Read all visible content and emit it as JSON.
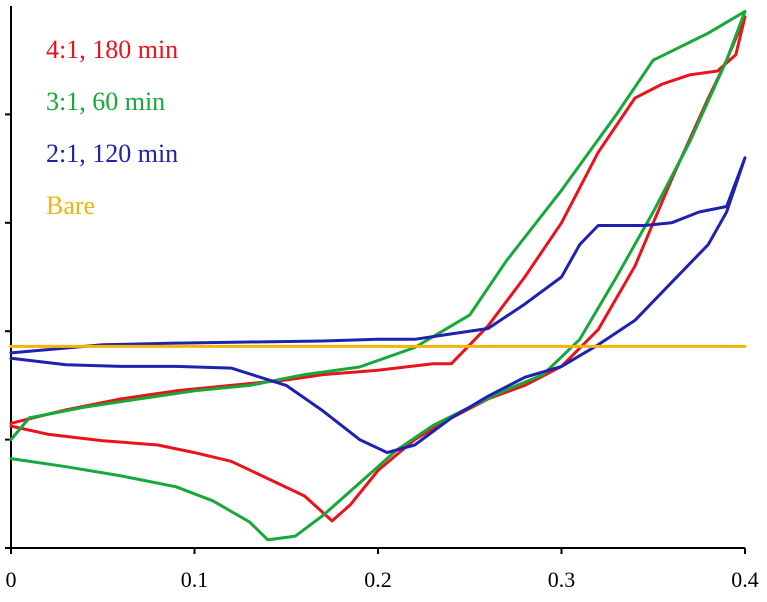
{
  "chart_data": {
    "type": "line",
    "title": "",
    "xlabel": "",
    "ylabel": "",
    "xlim": [
      0,
      0.4
    ],
    "ylim": [
      0,
      1
    ],
    "x_ticks": [
      "0",
      "0.1",
      "0.2",
      "0.3",
      "0.4"
    ],
    "y_ticks": [
      0.0,
      0.2,
      0.4,
      0.6,
      0.8
    ],
    "y_tick_labels_shown": false,
    "grid": false,
    "legend_position": "top-left",
    "series": [
      {
        "name": "4:1, 180 min",
        "color": "#e8141a",
        "points": [
          [
            0.0,
            0.225
          ],
          [
            0.02,
            0.21
          ],
          [
            0.05,
            0.198
          ],
          [
            0.08,
            0.19
          ],
          [
            0.1,
            0.176
          ],
          [
            0.12,
            0.16
          ],
          [
            0.14,
            0.128
          ],
          [
            0.16,
            0.096
          ],
          [
            0.175,
            0.05
          ],
          [
            0.185,
            0.08
          ],
          [
            0.2,
            0.143
          ],
          [
            0.22,
            0.2
          ],
          [
            0.24,
            0.24
          ],
          [
            0.26,
            0.275
          ],
          [
            0.28,
            0.3
          ],
          [
            0.3,
            0.335
          ],
          [
            0.32,
            0.403
          ],
          [
            0.34,
            0.52
          ],
          [
            0.36,
            0.68
          ],
          [
            0.38,
            0.83
          ],
          [
            0.39,
            0.9
          ],
          [
            0.4,
            0.98
          ],
          [
            0.395,
            0.91
          ],
          [
            0.385,
            0.88
          ],
          [
            0.37,
            0.873
          ],
          [
            0.355,
            0.856
          ],
          [
            0.34,
            0.83
          ],
          [
            0.32,
            0.73
          ],
          [
            0.3,
            0.6
          ],
          [
            0.28,
            0.5
          ],
          [
            0.26,
            0.41
          ],
          [
            0.24,
            0.34
          ],
          [
            0.23,
            0.34
          ],
          [
            0.2,
            0.328
          ],
          [
            0.17,
            0.32
          ],
          [
            0.15,
            0.31
          ],
          [
            0.12,
            0.3
          ],
          [
            0.09,
            0.29
          ],
          [
            0.06,
            0.275
          ],
          [
            0.03,
            0.255
          ],
          [
            0.0,
            0.23
          ]
        ]
      },
      {
        "name": "3:1, 60 min",
        "color": "#17a83a",
        "points": [
          [
            0.0,
            0.165
          ],
          [
            0.03,
            0.15
          ],
          [
            0.06,
            0.133
          ],
          [
            0.09,
            0.113
          ],
          [
            0.11,
            0.087
          ],
          [
            0.13,
            0.048
          ],
          [
            0.14,
            0.015
          ],
          [
            0.155,
            0.022
          ],
          [
            0.17,
            0.06
          ],
          [
            0.19,
            0.12
          ],
          [
            0.21,
            0.18
          ],
          [
            0.23,
            0.226
          ],
          [
            0.25,
            0.26
          ],
          [
            0.27,
            0.292
          ],
          [
            0.29,
            0.32
          ],
          [
            0.31,
            0.385
          ],
          [
            0.33,
            0.5
          ],
          [
            0.35,
            0.62
          ],
          [
            0.37,
            0.75
          ],
          [
            0.39,
            0.9
          ],
          [
            0.4,
            0.99
          ],
          [
            0.38,
            0.95
          ],
          [
            0.35,
            0.9
          ],
          [
            0.33,
            0.8
          ],
          [
            0.3,
            0.66
          ],
          [
            0.27,
            0.53
          ],
          [
            0.25,
            0.43
          ],
          [
            0.22,
            0.37
          ],
          [
            0.19,
            0.334
          ],
          [
            0.16,
            0.32
          ],
          [
            0.13,
            0.3
          ],
          [
            0.1,
            0.29
          ],
          [
            0.07,
            0.275
          ],
          [
            0.04,
            0.26
          ],
          [
            0.01,
            0.24
          ],
          [
            0.0,
            0.2
          ]
        ]
      },
      {
        "name": "2:1, 120 min",
        "color": "#1f22b0",
        "points": [
          [
            0.0,
            0.35
          ],
          [
            0.03,
            0.338
          ],
          [
            0.06,
            0.335
          ],
          [
            0.09,
            0.335
          ],
          [
            0.12,
            0.332
          ],
          [
            0.15,
            0.3
          ],
          [
            0.17,
            0.253
          ],
          [
            0.19,
            0.2
          ],
          [
            0.205,
            0.176
          ],
          [
            0.22,
            0.19
          ],
          [
            0.24,
            0.24
          ],
          [
            0.26,
            0.28
          ],
          [
            0.28,
            0.315
          ],
          [
            0.3,
            0.335
          ],
          [
            0.32,
            0.375
          ],
          [
            0.34,
            0.42
          ],
          [
            0.36,
            0.49
          ],
          [
            0.38,
            0.56
          ],
          [
            0.39,
            0.62
          ],
          [
            0.4,
            0.72
          ],
          [
            0.39,
            0.63
          ],
          [
            0.375,
            0.62
          ],
          [
            0.36,
            0.6
          ],
          [
            0.345,
            0.595
          ],
          [
            0.32,
            0.595
          ],
          [
            0.31,
            0.56
          ],
          [
            0.3,
            0.5
          ],
          [
            0.28,
            0.45
          ],
          [
            0.26,
            0.405
          ],
          [
            0.24,
            0.395
          ],
          [
            0.22,
            0.385
          ],
          [
            0.2,
            0.385
          ],
          [
            0.17,
            0.382
          ],
          [
            0.13,
            0.38
          ],
          [
            0.09,
            0.378
          ],
          [
            0.05,
            0.375
          ],
          [
            0.0,
            0.36
          ]
        ]
      },
      {
        "name": "Bare",
        "color": "#f6b30a",
        "points": [
          [
            0.0,
            0.372
          ],
          [
            0.4,
            0.372
          ]
        ]
      }
    ]
  }
}
